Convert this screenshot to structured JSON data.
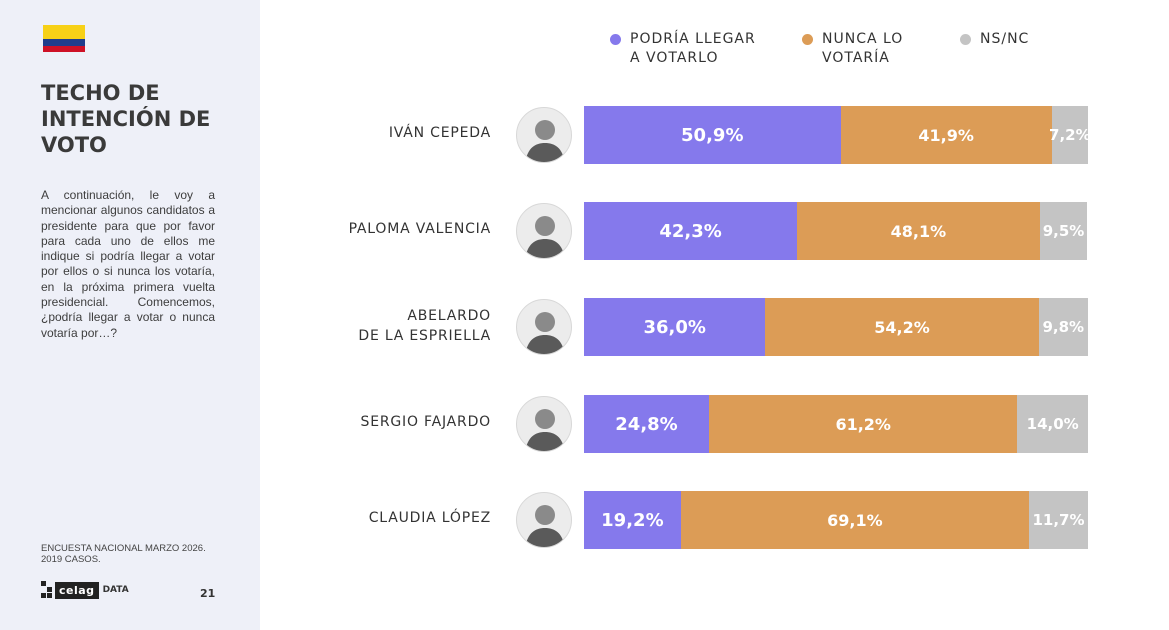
{
  "sidebar": {
    "flag_colors": [
      "#f7d117",
      "#f7d117",
      "#1f3d8c",
      "#ce1126"
    ],
    "title": "TECHO DE\nINTENCIÓN DE\nVOTO",
    "question": "A continuación, le voy a mencionar algunos candidatos a presidente para que por favor para cada uno de ellos me indique si podría llegar a votar por ellos o si nunca los votaría, en la próxima primera vuelta presidencial. Comencemos, ¿podría llegar a votar o nunca votaría por…?",
    "footnote": "ENCUESTA NACIONAL MARZO 2026.\n2019 CASOS.",
    "logo_text": "celag",
    "logo_suffix": "DATA",
    "page_number": "21"
  },
  "chart_data": {
    "type": "bar",
    "orientation": "horizontal",
    "stacked": true,
    "categories": [
      "IVÁN CEPEDA",
      "PALOMA VALENCIA",
      "ABELARDO\nDE LA ESPRIELLA",
      "SERGIO FAJARDO",
      "CLAUDIA LÓPEZ"
    ],
    "series": [
      {
        "name": "PODRÍA LLEGAR\nA VOTARLO",
        "color": "#8579ec",
        "values": [
          50.9,
          42.3,
          36.0,
          24.8,
          19.2
        ],
        "labels": [
          "50,9%",
          "42,3%",
          "36,0%",
          "24,8%",
          "19,2%"
        ]
      },
      {
        "name": "NUNCA LO\nVOTARÍA",
        "color": "#dc9c56",
        "values": [
          41.9,
          48.1,
          54.2,
          61.2,
          69.1
        ],
        "labels": [
          "41,9%",
          "48,1%",
          "54,2%",
          "61,2%",
          "69,1%"
        ]
      },
      {
        "name": "NS/NC",
        "color": "#c4c4c4",
        "values": [
          7.2,
          9.5,
          9.8,
          14.0,
          11.7
        ],
        "labels": [
          "7,2%",
          "9,5%",
          "9,8%",
          "14,0%",
          "11,7%"
        ]
      }
    ],
    "xlim": [
      0,
      100
    ],
    "legend_position": "top",
    "grid": false
  },
  "icons": {
    "candidate_photo": "person-portrait-icon"
  }
}
